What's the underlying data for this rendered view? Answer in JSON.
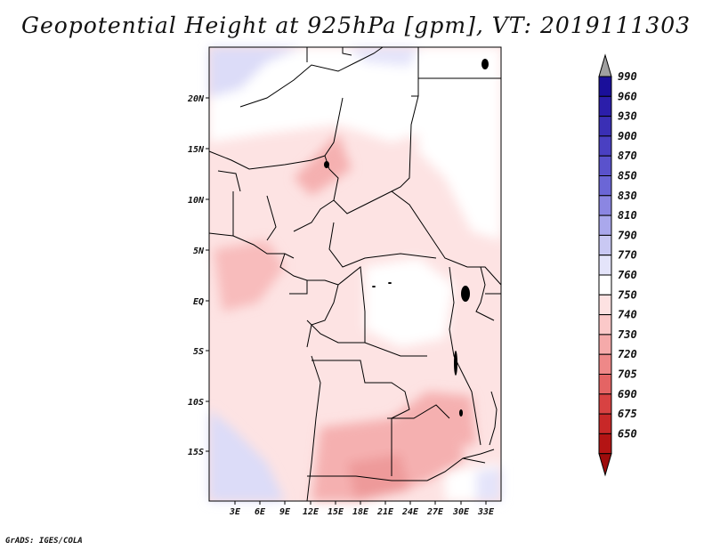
{
  "title": "Geopotential Height at 925hPa [gpm], VT: 2019111303",
  "credit": "GrADS: IGES/COLA",
  "lat_labels": [
    "20N",
    "15N",
    "10N",
    "5N",
    "EQ",
    "5S",
    "10S",
    "15S"
  ],
  "lon_labels": [
    "3E",
    "6E",
    "9E",
    "12E",
    "15E",
    "18E",
    "21E",
    "24E",
    "27E",
    "30E",
    "33E"
  ],
  "colorbar": {
    "levels": [
      "990",
      "960",
      "930",
      "900",
      "870",
      "850",
      "830",
      "810",
      "790",
      "770",
      "760",
      "750",
      "740",
      "730",
      "720",
      "705",
      "690",
      "675",
      "650"
    ],
    "colors": [
      "#1a0f9a",
      "#2b1eaa",
      "#3a2fb5",
      "#4a40c2",
      "#5a52cc",
      "#6b66d6",
      "#8b86e2",
      "#aaa8ec",
      "#c9c8f3",
      "#e4e4fa",
      "#ffffff",
      "#fde2e2",
      "#fbc9c9",
      "#f5aaaa",
      "#ee8888",
      "#e46464",
      "#d84242",
      "#c82828",
      "#b41414",
      "#9e0c0c"
    ],
    "top_arrow_color": "#a0a0a0"
  },
  "chart_data": {
    "type": "heatmap",
    "variable": "Geopotential Height at 925hPa",
    "units": "gpm",
    "valid_time": "2019111303",
    "lon_range_deg": [
      0,
      35
    ],
    "lat_range_deg": [
      -20,
      25
    ]
  }
}
